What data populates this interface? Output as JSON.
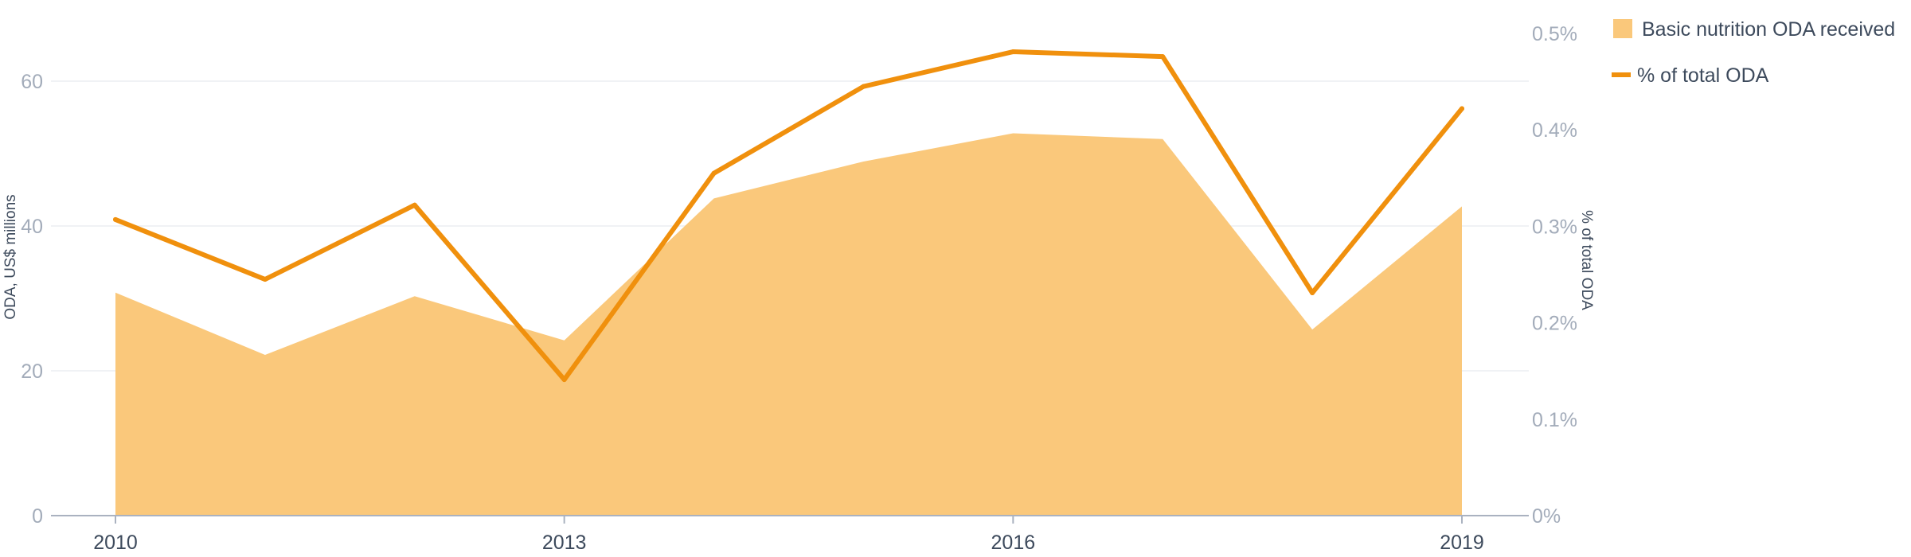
{
  "chart_data": {
    "type": "area",
    "x": [
      2010,
      2011,
      2012,
      2013,
      2014,
      2015,
      2016,
      2017,
      2018,
      2019
    ],
    "x_tick_labels": [
      "2010",
      "2013",
      "2016",
      "2019"
    ],
    "x_tick_values": [
      2010,
      2013,
      2016,
      2019
    ],
    "y_left": {
      "label": "ODA, US$ millions",
      "lim": [
        0,
        70
      ],
      "ticks": [
        0,
        20,
        40,
        60
      ],
      "tick_labels": [
        "0",
        "20",
        "40",
        "60"
      ]
    },
    "y_right": {
      "label": "% of total ODA",
      "lim": [
        0,
        0.5
      ],
      "ticks": [
        0,
        0.1,
        0.2,
        0.3,
        0.4,
        0.5
      ],
      "tick_labels": [
        "0%",
        "0.1%",
        "0.2%",
        "0.3%",
        "0.4%",
        "0.5%"
      ]
    },
    "series": [
      {
        "name": "Basic nutrition ODA received",
        "type": "area",
        "axis": "left",
        "color": "#fac87b",
        "values": [
          30.8,
          22.2,
          30.3,
          24.2,
          43.8,
          48.9,
          52.8,
          52.0,
          25.7,
          42.7
        ]
      },
      {
        "name": "% of total ODA",
        "type": "line",
        "axis": "right",
        "color": "#f0900d",
        "values": [
          0.307,
          0.245,
          0.322,
          0.141,
          0.355,
          0.445,
          0.481,
          0.476,
          0.231,
          0.422
        ]
      }
    ],
    "grid": true,
    "legend_position": "top-right"
  }
}
